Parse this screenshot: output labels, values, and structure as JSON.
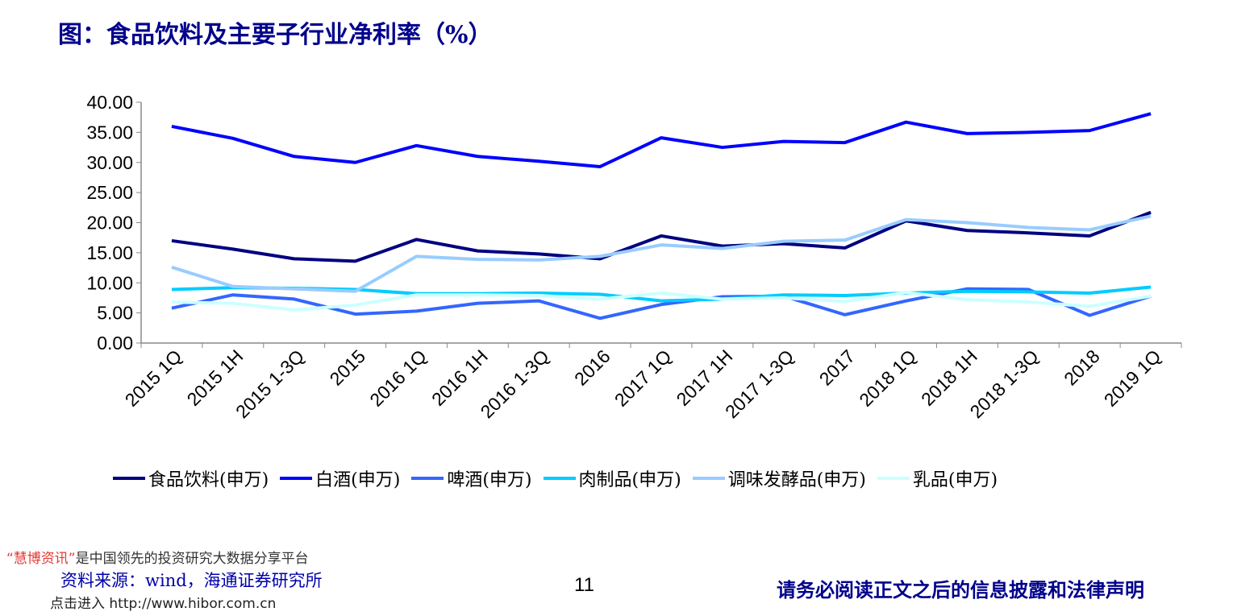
{
  "title": "图：食品饮料及主要子行业净利率（%）",
  "chart_data": {
    "type": "line",
    "title": "图：食品饮料及主要子行业净利率（%）",
    "categories": [
      "2015 1Q",
      "2015 1H",
      "2015 1-3Q",
      "2015",
      "2016 1Q",
      "2016 1H",
      "2016 1-3Q",
      "2016",
      "2017 1Q",
      "2017 1H",
      "2017 1-3Q",
      "2017",
      "2018 1Q",
      "2018 1H",
      "2018 1-3Q",
      "2018",
      "2019 1Q"
    ],
    "ylim": [
      0,
      40
    ],
    "yticks": [
      "0.00",
      "5.00",
      "10.00",
      "15.00",
      "20.00",
      "25.00",
      "30.00",
      "35.00",
      "40.00"
    ],
    "legend_position": "bottom",
    "series": [
      {
        "name": "食品饮料(申万)",
        "color": "#000080",
        "values": [
          17,
          15.6,
          14,
          13.6,
          17.2,
          15.3,
          14.8,
          14,
          17.8,
          16.1,
          16.5,
          15.8,
          20.3,
          18.7,
          18.3,
          17.8,
          21.7
        ]
      },
      {
        "name": "白酒(申万)",
        "color": "#0000ff",
        "values": [
          36,
          34,
          31,
          30,
          32.8,
          31,
          30.2,
          29.3,
          34.1,
          32.5,
          33.5,
          33.3,
          36.7,
          34.8,
          35,
          35.3,
          38.1
        ]
      },
      {
        "name": "啤酒(申万)",
        "color": "#3366ff",
        "values": [
          5.8,
          8,
          7.3,
          4.8,
          5.3,
          6.6,
          7,
          4.1,
          6.4,
          7.7,
          7.8,
          4.7,
          7,
          9,
          8.9,
          4.6,
          7.8
        ]
      },
      {
        "name": "肉制品(申万)",
        "color": "#00ccff",
        "values": [
          8.9,
          9.2,
          9.1,
          8.9,
          8.2,
          8.2,
          8.3,
          8.1,
          7,
          7.3,
          8,
          7.9,
          8.3,
          8.6,
          8.5,
          8.3,
          9.3
        ]
      },
      {
        "name": "调味发酵品(申万)",
        "color": "#99ccff",
        "values": [
          12.6,
          9.4,
          9,
          8.6,
          14.4,
          13.9,
          13.8,
          14.4,
          16.3,
          15.7,
          16.9,
          17.1,
          20.5,
          20,
          19.2,
          18.8,
          21.1
        ]
      },
      {
        "name": "乳品(申万)",
        "color": "#ccffff",
        "values": [
          6.8,
          6.6,
          5.5,
          6.3,
          8,
          8,
          7.9,
          7.3,
          8.3,
          7.3,
          7.5,
          6.9,
          8.4,
          7.2,
          6.8,
          6.1,
          7.8
        ]
      }
    ]
  },
  "footer": {
    "promo_brand": "“慧博资讯”",
    "promo_text": "是中国领先的投资研究大数据分享平台",
    "source": "资料来源：wind，海通证券研究所",
    "link": "点击进入 http://www.hibor.com.cn",
    "page": "11",
    "disclaimer": "请务必阅读正文之后的信息披露和法律声明"
  }
}
